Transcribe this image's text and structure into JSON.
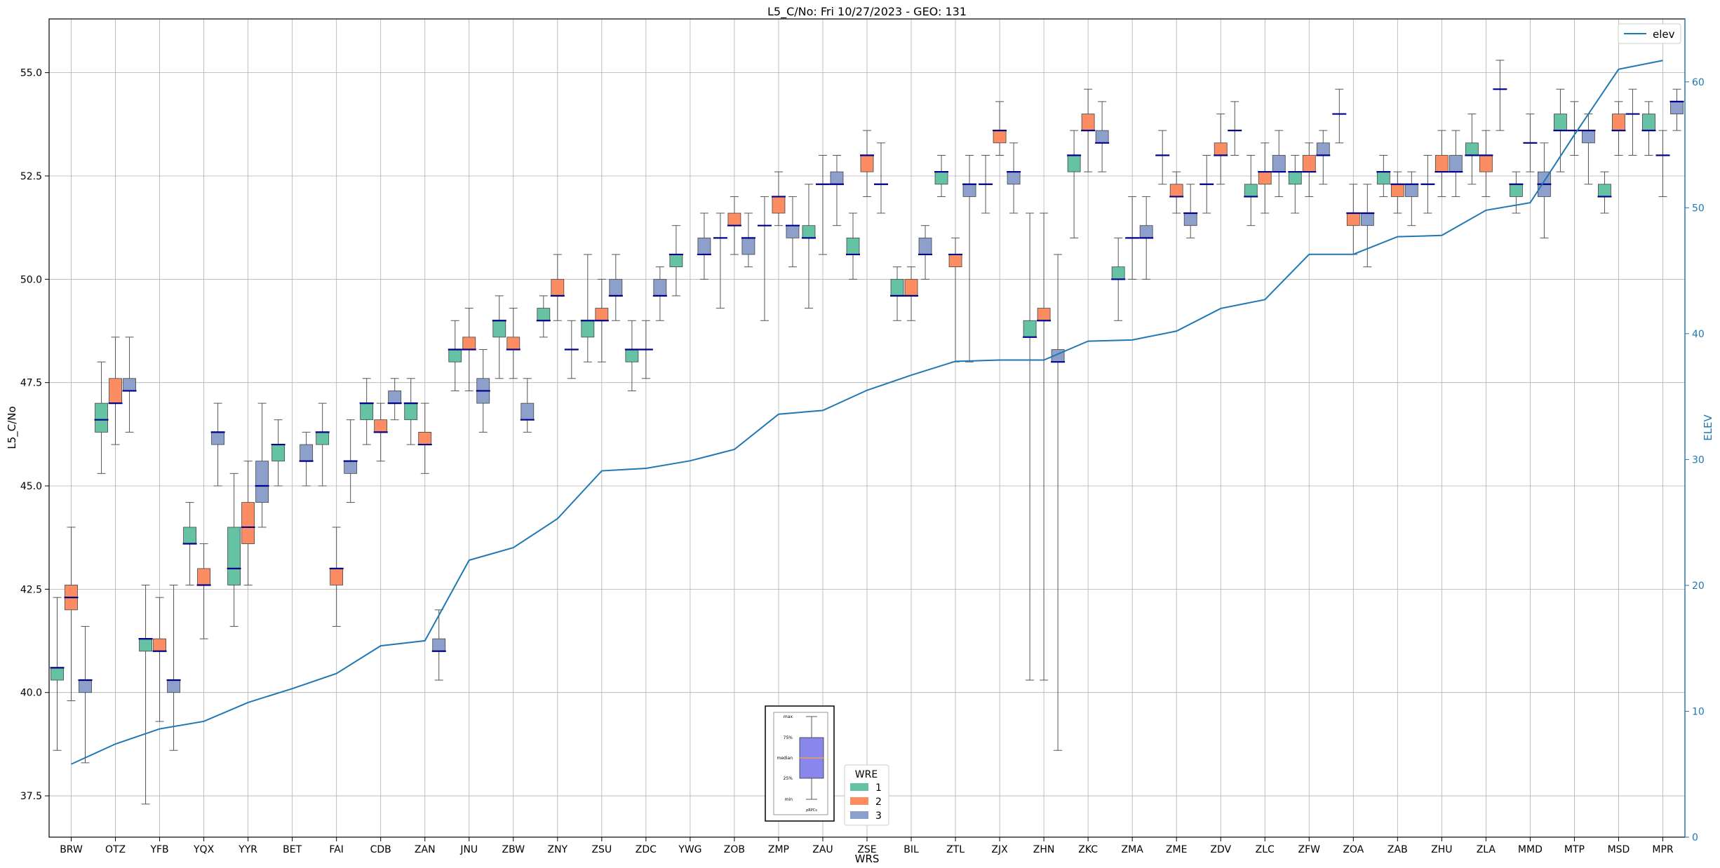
{
  "chart_data": {
    "type": "box",
    "title": "L5_C/No: Fri 10/27/2023 - GEO: 131",
    "xlabel": "WRS",
    "ylabel": "L5_C/No",
    "y2label": "ELEV",
    "ylim": [
      36.5,
      56.3
    ],
    "y2lim": [
      0,
      65
    ],
    "yticks": [
      "37.5",
      "40.0",
      "42.5",
      "45.0",
      "47.5",
      "50.0",
      "52.5",
      "55.0"
    ],
    "y2ticks": [
      "0",
      "10",
      "20",
      "30",
      "40",
      "50",
      "60"
    ],
    "grid": true,
    "categories": [
      "BRW",
      "OTZ",
      "YFB",
      "YQX",
      "YYR",
      "BET",
      "FAI",
      "CDB",
      "ZAN",
      "JNU",
      "ZBW",
      "ZNY",
      "ZSU",
      "ZDC",
      "YWG",
      "ZOB",
      "ZMP",
      "ZAU",
      "ZSE",
      "BIL",
      "ZTL",
      "ZJX",
      "ZHN",
      "ZKC",
      "ZMA",
      "ZME",
      "ZDV",
      "ZLC",
      "ZFW",
      "ZOA",
      "ZAB",
      "ZHU",
      "ZLA",
      "MMD",
      "MTP",
      "MSD",
      "MPR"
    ],
    "series_colors": {
      "1": "#66c2a5",
      "2": "#fc8d62",
      "3": "#8da0cb"
    },
    "elev_color": "#1f77b4",
    "elev_line": {
      "name": "elev",
      "values": [
        5.8,
        7.4,
        8.6,
        9.2,
        10.7,
        11.8,
        13.0,
        15.2,
        15.6,
        22.0,
        23.0,
        25.3,
        29.1,
        29.3,
        29.9,
        30.8,
        33.6,
        33.9,
        35.5,
        36.7,
        37.8,
        37.9,
        37.9,
        39.4,
        39.5,
        40.2,
        42.0,
        42.7,
        46.3,
        46.3,
        47.7,
        47.8,
        49.8,
        50.4,
        55.8,
        61.0,
        61.7
      ]
    },
    "boxes": [
      [
        {
          "min": 38.6,
          "q1": 40.3,
          "median": 40.6,
          "q3": 40.6,
          "max": 42.3
        },
        {
          "min": 39.8,
          "q1": 42.0,
          "median": 42.3,
          "q3": 42.6,
          "max": 44.0
        },
        {
          "min": 38.3,
          "q1": 40.0,
          "median": 40.3,
          "q3": 40.3,
          "max": 41.6
        }
      ],
      [
        {
          "min": 45.3,
          "q1": 46.3,
          "median": 46.6,
          "q3": 47.0,
          "max": 48.0
        },
        {
          "min": 46.0,
          "q1": 47.0,
          "median": 47.0,
          "q3": 47.6,
          "max": 48.6
        },
        {
          "min": 46.3,
          "q1": 47.3,
          "median": 47.3,
          "q3": 47.6,
          "max": 48.6
        }
      ],
      [
        {
          "min": 37.3,
          "q1": 41.0,
          "median": 41.3,
          "q3": 41.3,
          "max": 42.6
        },
        {
          "min": 39.3,
          "q1": 41.0,
          "median": 41.0,
          "q3": 41.3,
          "max": 42.3
        },
        {
          "min": 38.6,
          "q1": 40.0,
          "median": 40.3,
          "q3": 40.3,
          "max": 42.6
        }
      ],
      [
        {
          "min": 42.6,
          "q1": 43.6,
          "median": 43.6,
          "q3": 44.0,
          "max": 44.6
        },
        {
          "min": 41.3,
          "q1": 42.6,
          "median": 42.6,
          "q3": 43.0,
          "max": 43.6
        },
        {
          "min": 45.0,
          "q1": 46.0,
          "median": 46.3,
          "q3": 46.3,
          "max": 47.0
        }
      ],
      [
        {
          "min": 41.6,
          "q1": 42.6,
          "median": 43.0,
          "q3": 44.0,
          "max": 45.3
        },
        {
          "min": 42.6,
          "q1": 43.6,
          "median": 44.0,
          "q3": 44.6,
          "max": 45.6
        },
        {
          "min": 44.0,
          "q1": 44.6,
          "median": 45.0,
          "q3": 45.6,
          "max": 47.0
        }
      ],
      [
        {
          "min": 45.0,
          "q1": 45.6,
          "median": 46.0,
          "q3": 46.0,
          "max": 46.6
        },
        null,
        {
          "min": 45.0,
          "q1": 45.6,
          "median": 45.6,
          "q3": 46.0,
          "max": 46.3
        }
      ],
      [
        {
          "min": 45.0,
          "q1": 46.0,
          "median": 46.3,
          "q3": 46.3,
          "max": 47.0
        },
        {
          "min": 41.6,
          "q1": 42.6,
          "median": 43.0,
          "q3": 43.0,
          "max": 44.0
        },
        {
          "min": 44.6,
          "q1": 45.3,
          "median": 45.6,
          "q3": 45.6,
          "max": 46.6
        }
      ],
      [
        {
          "min": 46.0,
          "q1": 46.6,
          "median": 47.0,
          "q3": 47.0,
          "max": 47.6
        },
        {
          "min": 45.6,
          "q1": 46.3,
          "median": 46.3,
          "q3": 46.6,
          "max": 47.0
        },
        {
          "min": 46.6,
          "q1": 47.0,
          "median": 47.0,
          "q3": 47.3,
          "max": 47.6
        }
      ],
      [
        {
          "min": 46.0,
          "q1": 46.6,
          "median": 47.0,
          "q3": 47.0,
          "max": 47.6
        },
        {
          "min": 45.3,
          "q1": 46.0,
          "median": 46.0,
          "q3": 46.3,
          "max": 47.0
        },
        {
          "min": 40.3,
          "q1": 41.0,
          "median": 41.0,
          "q3": 41.3,
          "max": 42.0
        }
      ],
      [
        {
          "min": 47.3,
          "q1": 48.0,
          "median": 48.3,
          "q3": 48.3,
          "max": 49.0
        },
        {
          "min": 47.3,
          "q1": 48.3,
          "median": 48.3,
          "q3": 48.6,
          "max": 49.3
        },
        {
          "min": 46.3,
          "q1": 47.0,
          "median": 47.3,
          "q3": 47.6,
          "max": 48.3
        }
      ],
      [
        {
          "min": 47.6,
          "q1": 48.6,
          "median": 49.0,
          "q3": 49.0,
          "max": 49.6
        },
        {
          "min": 47.6,
          "q1": 48.3,
          "median": 48.3,
          "q3": 48.6,
          "max": 49.3
        },
        {
          "min": 46.3,
          "q1": 46.6,
          "median": 46.6,
          "q3": 47.0,
          "max": 47.6
        }
      ],
      [
        {
          "min": 48.6,
          "q1": 49.0,
          "median": 49.0,
          "q3": 49.3,
          "max": 49.6
        },
        {
          "min": 49.0,
          "q1": 49.6,
          "median": 49.6,
          "q3": 50.0,
          "max": 50.6
        },
        {
          "min": 47.6,
          "q1": 48.3,
          "median": 48.3,
          "q3": 48.3,
          "max": 49.0
        }
      ],
      [
        {
          "min": 48.0,
          "q1": 48.6,
          "median": 49.0,
          "q3": 49.0,
          "max": 50.6
        },
        {
          "min": 48.0,
          "q1": 49.0,
          "median": 49.0,
          "q3": 49.3,
          "max": 50.0
        },
        {
          "min": 49.0,
          "q1": 49.6,
          "median": 49.6,
          "q3": 50.0,
          "max": 50.6
        }
      ],
      [
        {
          "min": 47.3,
          "q1": 48.0,
          "median": 48.3,
          "q3": 48.3,
          "max": 49.0
        },
        {
          "min": 47.6,
          "q1": 48.3,
          "median": 48.3,
          "q3": 48.3,
          "max": 49.0
        },
        {
          "min": 49.0,
          "q1": 49.6,
          "median": 49.6,
          "q3": 50.0,
          "max": 50.3
        }
      ],
      [
        {
          "min": 49.6,
          "q1": 50.3,
          "median": 50.6,
          "q3": 50.6,
          "max": 51.3
        },
        null,
        {
          "min": 50.0,
          "q1": 50.6,
          "median": 50.6,
          "q3": 51.0,
          "max": 51.6
        }
      ],
      [
        {
          "min": 49.3,
          "q1": 51.0,
          "median": 51.0,
          "q3": 51.0,
          "max": 51.6
        },
        {
          "min": 50.6,
          "q1": 51.3,
          "median": 51.3,
          "q3": 51.6,
          "max": 52.0
        },
        {
          "min": 50.3,
          "q1": 50.6,
          "median": 51.0,
          "q3": 51.0,
          "max": 51.6
        }
      ],
      [
        {
          "min": 49.0,
          "q1": 51.3,
          "median": 51.3,
          "q3": 51.3,
          "max": 52.0
        },
        {
          "min": 51.3,
          "q1": 51.6,
          "median": 52.0,
          "q3": 52.0,
          "max": 52.6
        },
        {
          "min": 50.3,
          "q1": 51.0,
          "median": 51.3,
          "q3": 51.3,
          "max": 52.0
        }
      ],
      [
        {
          "min": 49.3,
          "q1": 51.0,
          "median": 51.0,
          "q3": 51.3,
          "max": 52.3
        },
        {
          "min": 50.6,
          "q1": 52.3,
          "median": 52.3,
          "q3": 52.3,
          "max": 53.0
        },
        {
          "min": 51.3,
          "q1": 52.3,
          "median": 52.3,
          "q3": 52.6,
          "max": 53.0
        }
      ],
      [
        {
          "min": 50.0,
          "q1": 50.6,
          "median": 50.6,
          "q3": 51.0,
          "max": 51.6
        },
        {
          "min": 52.0,
          "q1": 52.6,
          "median": 53.0,
          "q3": 53.0,
          "max": 53.6
        },
        {
          "min": 51.6,
          "q1": 52.3,
          "median": 52.3,
          "q3": 52.3,
          "max": 53.3
        }
      ],
      [
        {
          "min": 49.0,
          "q1": 49.6,
          "median": 49.6,
          "q3": 50.0,
          "max": 50.3
        },
        {
          "min": 49.0,
          "q1": 49.6,
          "median": 49.6,
          "q3": 50.0,
          "max": 50.3
        },
        {
          "min": 50.0,
          "q1": 50.6,
          "median": 50.6,
          "q3": 51.0,
          "max": 51.3
        }
      ],
      [
        {
          "min": 52.0,
          "q1": 52.3,
          "median": 52.6,
          "q3": 52.6,
          "max": 53.0
        },
        {
          "min": 48.0,
          "q1": 50.3,
          "median": 50.6,
          "q3": 50.6,
          "max": 51.0
        },
        {
          "min": 48.0,
          "q1": 52.0,
          "median": 52.3,
          "q3": 52.3,
          "max": 53.0
        }
      ],
      [
        {
          "min": 51.6,
          "q1": 52.3,
          "median": 52.3,
          "q3": 52.3,
          "max": 53.0
        },
        {
          "min": 53.0,
          "q1": 53.3,
          "median": 53.6,
          "q3": 53.6,
          "max": 54.3
        },
        {
          "min": 51.6,
          "q1": 52.3,
          "median": 52.6,
          "q3": 52.6,
          "max": 53.3
        }
      ],
      [
        {
          "min": 40.3,
          "q1": 48.6,
          "median": 48.6,
          "q3": 49.0,
          "max": 51.6
        },
        {
          "min": 40.3,
          "q1": 49.0,
          "median": 49.0,
          "q3": 49.3,
          "max": 51.6
        },
        {
          "min": 38.6,
          "q1": 48.0,
          "median": 48.0,
          "q3": 48.3,
          "max": 50.6
        }
      ],
      [
        {
          "min": 51.0,
          "q1": 52.6,
          "median": 53.0,
          "q3": 53.0,
          "max": 53.6
        },
        {
          "min": 52.6,
          "q1": 53.6,
          "median": 53.6,
          "q3": 54.0,
          "max": 54.6
        },
        {
          "min": 52.6,
          "q1": 53.3,
          "median": 53.3,
          "q3": 53.6,
          "max": 54.3
        }
      ],
      [
        {
          "min": 49.0,
          "q1": 50.0,
          "median": 50.0,
          "q3": 50.3,
          "max": 51.0
        },
        {
          "min": 50.0,
          "q1": 51.0,
          "median": 51.0,
          "q3": 51.0,
          "max": 52.0
        },
        {
          "min": 50.0,
          "q1": 51.0,
          "median": 51.0,
          "q3": 51.3,
          "max": 52.0
        }
      ],
      [
        {
          "min": 52.3,
          "q1": 53.0,
          "median": 53.0,
          "q3": 53.0,
          "max": 53.6
        },
        {
          "min": 51.6,
          "q1": 52.0,
          "median": 52.0,
          "q3": 52.3,
          "max": 52.6
        },
        {
          "min": 51.0,
          "q1": 51.3,
          "median": 51.6,
          "q3": 51.6,
          "max": 52.3
        }
      ],
      [
        {
          "min": 51.6,
          "q1": 52.3,
          "median": 52.3,
          "q3": 52.3,
          "max": 53.0
        },
        {
          "min": 52.3,
          "q1": 53.0,
          "median": 53.0,
          "q3": 53.3,
          "max": 54.0
        },
        {
          "min": 53.0,
          "q1": 53.6,
          "median": 53.6,
          "q3": 53.6,
          "max": 54.3
        }
      ],
      [
        {
          "min": 51.3,
          "q1": 52.0,
          "median": 52.0,
          "q3": 52.3,
          "max": 53.0
        },
        {
          "min": 51.6,
          "q1": 52.3,
          "median": 52.6,
          "q3": 52.6,
          "max": 53.3
        },
        {
          "min": 52.0,
          "q1": 52.6,
          "median": 52.6,
          "q3": 53.0,
          "max": 53.6
        }
      ],
      [
        {
          "min": 51.6,
          "q1": 52.3,
          "median": 52.6,
          "q3": 52.6,
          "max": 53.0
        },
        {
          "min": 52.0,
          "q1": 52.6,
          "median": 52.6,
          "q3": 53.0,
          "max": 53.3
        },
        {
          "min": 52.3,
          "q1": 53.0,
          "median": 53.0,
          "q3": 53.3,
          "max": 53.6
        }
      ],
      [
        {
          "min": 53.3,
          "q1": 54.0,
          "median": 54.0,
          "q3": 54.0,
          "max": 54.6
        },
        {
          "min": 50.6,
          "q1": 51.3,
          "median": 51.6,
          "q3": 51.6,
          "max": 52.3
        },
        {
          "min": 50.3,
          "q1": 51.3,
          "median": 51.6,
          "q3": 51.6,
          "max": 52.3
        }
      ],
      [
        {
          "min": 52.0,
          "q1": 52.3,
          "median": 52.6,
          "q3": 52.6,
          "max": 53.0
        },
        {
          "min": 51.6,
          "q1": 52.0,
          "median": 52.3,
          "q3": 52.3,
          "max": 52.6
        },
        {
          "min": 51.3,
          "q1": 52.0,
          "median": 52.3,
          "q3": 52.3,
          "max": 52.6
        }
      ],
      [
        {
          "min": 51.6,
          "q1": 52.3,
          "median": 52.3,
          "q3": 52.3,
          "max": 53.0
        },
        {
          "min": 52.0,
          "q1": 52.6,
          "median": 52.6,
          "q3": 53.0,
          "max": 53.6
        },
        {
          "min": 52.0,
          "q1": 52.6,
          "median": 52.6,
          "q3": 53.0,
          "max": 53.6
        }
      ],
      [
        {
          "min": 52.3,
          "q1": 53.0,
          "median": 53.0,
          "q3": 53.3,
          "max": 54.0
        },
        {
          "min": 52.0,
          "q1": 52.6,
          "median": 53.0,
          "q3": 53.0,
          "max": 53.6
        },
        {
          "min": 53.6,
          "q1": 54.6,
          "median": 54.6,
          "q3": 54.6,
          "max": 55.3
        }
      ],
      [
        {
          "min": 51.6,
          "q1": 52.0,
          "median": 52.3,
          "q3": 52.3,
          "max": 52.6
        },
        {
          "min": 52.6,
          "q1": 53.3,
          "median": 53.3,
          "q3": 53.3,
          "max": 54.0
        },
        {
          "min": 51.0,
          "q1": 52.0,
          "median": 52.3,
          "q3": 52.6,
          "max": 53.3
        }
      ],
      [
        {
          "min": 52.6,
          "q1": 53.6,
          "median": 53.6,
          "q3": 54.0,
          "max": 54.6
        },
        {
          "min": 53.0,
          "q1": 53.6,
          "median": 53.6,
          "q3": 53.6,
          "max": 54.3
        },
        {
          "min": 52.3,
          "q1": 53.3,
          "median": 53.6,
          "q3": 53.6,
          "max": 54.0
        }
      ],
      [
        {
          "min": 51.6,
          "q1": 52.0,
          "median": 52.0,
          "q3": 52.3,
          "max": 52.6
        },
        {
          "min": 53.0,
          "q1": 53.6,
          "median": 53.6,
          "q3": 54.0,
          "max": 54.3
        },
        {
          "min": 53.0,
          "q1": 54.0,
          "median": 54.0,
          "q3": 54.0,
          "max": 54.6
        }
      ],
      [
        {
          "min": 53.0,
          "q1": 53.6,
          "median": 53.6,
          "q3": 54.0,
          "max": 54.3
        },
        {
          "min": 52.0,
          "q1": 53.0,
          "median": 53.0,
          "q3": 53.0,
          "max": 53.6
        },
        {
          "min": 53.6,
          "q1": 54.0,
          "median": 54.3,
          "q3": 54.3,
          "max": 54.6
        }
      ]
    ],
    "legend_elev": {
      "label": "elev",
      "position": "top-right"
    },
    "legend_wre": {
      "title": "WRE",
      "labels": [
        "1",
        "2",
        "3"
      ],
      "position": "bottom-center"
    },
    "boxplot_key": {
      "labels": [
        "max",
        "75%",
        "median",
        "25%",
        "min"
      ],
      "caption": "pRPCs",
      "fill": "#8a87ec",
      "median_color": "#e8a050"
    }
  }
}
